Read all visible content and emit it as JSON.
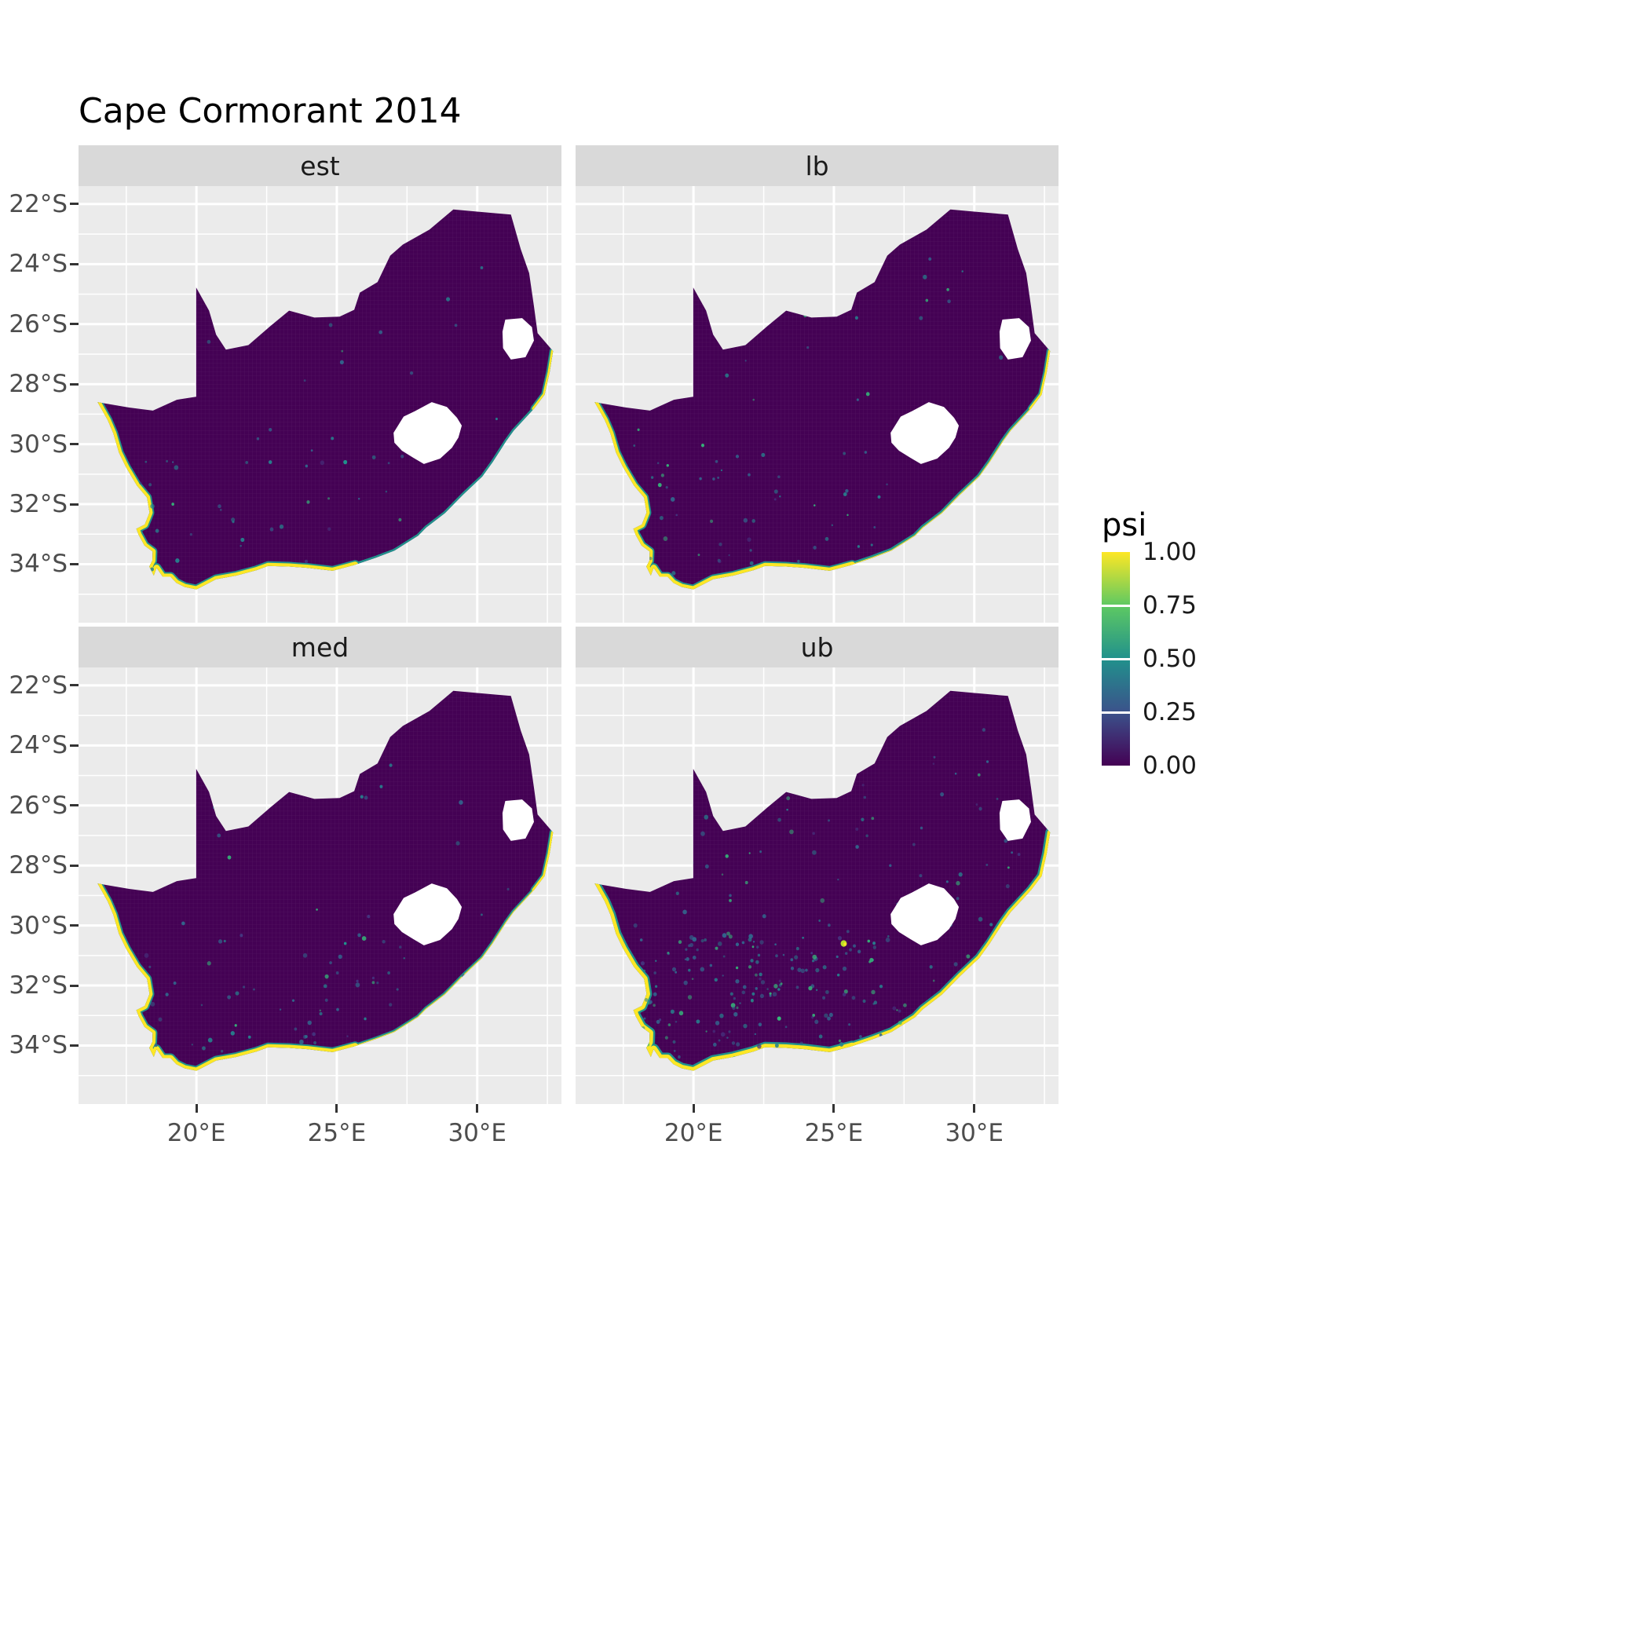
{
  "title": "Cape Cormorant 2014",
  "facets": [
    {
      "label": "est"
    },
    {
      "label": "lb"
    },
    {
      "label": "med"
    },
    {
      "label": "ub"
    }
  ],
  "axes": {
    "x_ticks": [
      {
        "label": "20°E",
        "lon": 20
      },
      {
        "label": "25°E",
        "lon": 25
      },
      {
        "label": "30°E",
        "lon": 30
      }
    ],
    "y_ticks": [
      {
        "label": "22°S",
        "lat": 22
      },
      {
        "label": "24°S",
        "lat": 24
      },
      {
        "label": "26°S",
        "lat": 26
      },
      {
        "label": "28°S",
        "lat": 28
      },
      {
        "label": "30°S",
        "lat": 30
      },
      {
        "label": "32°S",
        "lat": 32
      },
      {
        "label": "34°S",
        "lat": 34
      }
    ],
    "x_minor": [
      17.5,
      22.5,
      27.5,
      32.5
    ],
    "y_minor": [
      23,
      25,
      27,
      29,
      31,
      33,
      35
    ]
  },
  "legend": {
    "title": "psi",
    "labels": [
      {
        "text": "1.00",
        "value": 1.0
      },
      {
        "text": "0.75",
        "value": 0.75
      },
      {
        "text": "0.50",
        "value": 0.5
      },
      {
        "text": "0.25",
        "value": 0.25
      },
      {
        "text": "0.00",
        "value": 0.0
      }
    ],
    "tick_values": [
      0.25,
      0.5,
      0.75
    ],
    "gradient_stops": [
      {
        "value": 0.0,
        "color": "#440154"
      },
      {
        "value": 0.25,
        "color": "#3B528B"
      },
      {
        "value": 0.5,
        "color": "#21918C"
      },
      {
        "value": 0.75,
        "color": "#5EC962"
      },
      {
        "value": 1.0,
        "color": "#FDE725"
      }
    ]
  },
  "colors": {
    "panel_bg": "#EBEBEB",
    "strip_bg": "#D9D9D9",
    "grid": "#FFFFFF",
    "map_fill": "#440154",
    "hole_fill": "#FFFFFF",
    "coast_high": "#FDE725",
    "coast_mid": "#21918C",
    "axis_text": "#4D4D4D",
    "tick_mark": "#333333",
    "title_text": "#000000"
  },
  "chart_data": {
    "type": "heatmap",
    "title": "Cape Cormorant 2014",
    "region": "South Africa (Lesotho and Eswatini shown as white holes in the raster)",
    "variable": "psi",
    "scale": {
      "min": 0,
      "max": 1,
      "palette": "viridis",
      "breaks": [
        0,
        0.25,
        0.5,
        0.75,
        1
      ]
    },
    "x_extent_deg_east": [
      15.8,
      33.0
    ],
    "y_extent_deg_south": [
      21.4,
      35.95
    ],
    "layout": "2x2 facet grid (est, lb, med, ub), shared lon/lat axes, colorbar legend on right",
    "pattern": "psi is approximately 0 (dark purple) across the interior in all four facets; psi rises to approximately 1 (yellow) in a narrow band along the Atlantic west coast and the southern coast; the east coast shows low-to-moderate psi (teal/green); 'ub' shows the widest high-psi coastal band and the most scattered non-zero cells inland",
    "facets": [
      {
        "name": "est",
        "interior_psi": 0,
        "coast_psi": {
          "west": 1.0,
          "south": 1.0,
          "east": 0.35
        },
        "render": {
          "seed": 11,
          "speckles": 60,
          "ws_teal_w": 12,
          "ws_yellow_w": 8,
          "east_teal_w": 5,
          "east_yellow_w": 0,
          "hotspots": [
            [
              25.3,
              30.6,
              "#21918C",
              0.07
            ]
          ]
        }
      },
      {
        "name": "lb",
        "interior_psi": 0,
        "coast_psi": {
          "west": 1.0,
          "south": 1.0,
          "east": 0.5
        },
        "render": {
          "seed": 22,
          "speckles": 90,
          "ws_teal_w": 12,
          "ws_yellow_w": 8,
          "east_teal_w": 7,
          "east_yellow_w": 2,
          "hotspots": []
        }
      },
      {
        "name": "med",
        "interior_psi": 0,
        "coast_psi": {
          "west": 1.0,
          "south": 1.0,
          "east": 0.4
        },
        "render": {
          "seed": 33,
          "speckles": 80,
          "ws_teal_w": 12,
          "ws_yellow_w": 8,
          "east_teal_w": 6,
          "east_yellow_w": 2,
          "hotspots": [
            [
              25.3,
              30.6,
              "#21918C",
              0.05
            ]
          ]
        }
      },
      {
        "name": "ub",
        "interior_psi": 0.05,
        "coast_psi": {
          "west": 1.0,
          "south": 1.0,
          "east": 0.9
        },
        "render": {
          "seed": 44,
          "speckles": 300,
          "ws_teal_w": 14,
          "ws_yellow_w": 9,
          "east_teal_w": 12,
          "east_yellow_w": 7,
          "hotspots": [
            [
              25.35,
              30.6,
              "#BADE28",
              0.11
            ],
            [
              25.4,
              30.62,
              "#FDE725",
              0.055
            ],
            [
              23.05,
              33.1,
              "#35B779",
              0.07
            ]
          ]
        }
      }
    ]
  }
}
